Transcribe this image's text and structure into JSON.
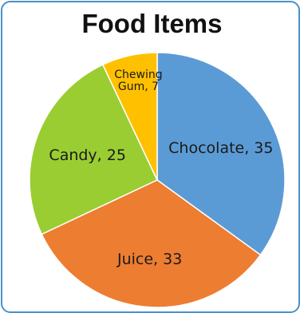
{
  "chart_data": {
    "type": "pie",
    "title": "Food Items",
    "slices": [
      {
        "label": "Chocolate",
        "value": 35,
        "color": "#5b9bd5"
      },
      {
        "label": "Juice",
        "value": 33,
        "color": "#ed7d31"
      },
      {
        "label": "Candy",
        "value": 25,
        "color": "#9acd32"
      },
      {
        "label": "Chewing Gum",
        "value": 7,
        "color": "#ffc000"
      }
    ],
    "legend": "none",
    "data_labels": "category-and-value"
  },
  "colors": {
    "frame_border": "#4a90c8",
    "slice_border": "#ffffff"
  }
}
